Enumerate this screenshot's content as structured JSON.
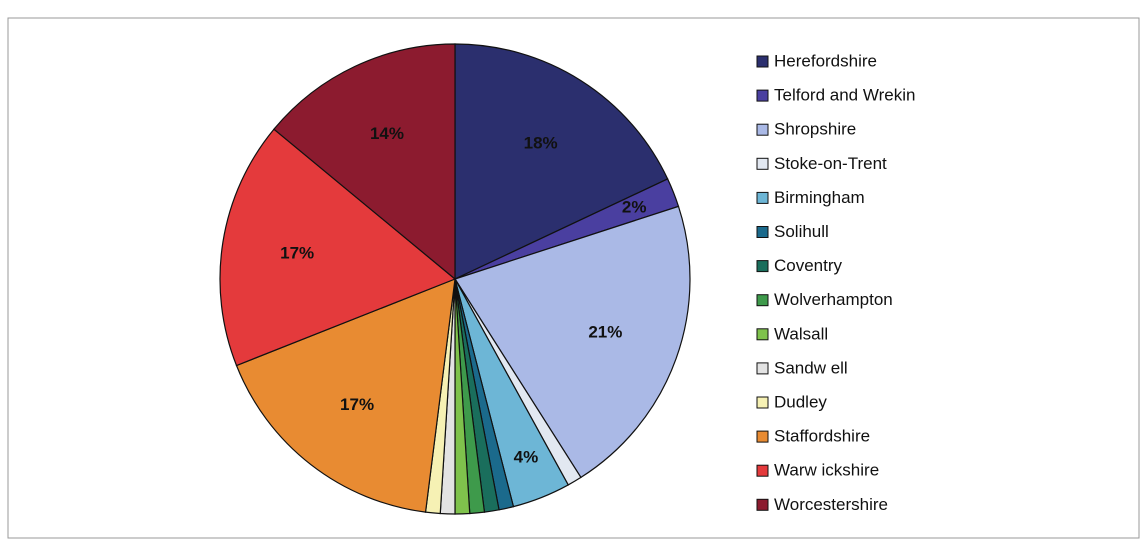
{
  "chart_data": {
    "type": "pie",
    "categories": [
      "Herefordshire",
      "Telford and Wrekin",
      "Shropshire",
      "Stoke-on-Trent",
      "Birmingham",
      "Solihull",
      "Coventry",
      "Wolverhampton",
      "Walsall",
      "Sandw ell",
      "Dudley",
      "Staffordshire",
      "Warw ickshire",
      "Worcestershire"
    ],
    "values": [
      18,
      2,
      21,
      1,
      4,
      1,
      1,
      1,
      1,
      1,
      1,
      17,
      17,
      14
    ],
    "value_labels": [
      "18%",
      "2%",
      "21%",
      null,
      "4%",
      null,
      null,
      null,
      null,
      null,
      null,
      "17%",
      "17%",
      "14%"
    ],
    "colors": [
      "#2b2f6e",
      "#4a3fa0",
      "#aab9e6",
      "#e2e8f1",
      "#6db6d6",
      "#1b6a8c",
      "#1a6e5c",
      "#3e9a4b",
      "#7fc24c",
      "#e3e3e3",
      "#f6f1b4",
      "#e88b32",
      "#e43a3c",
      "#8c1b2f"
    ],
    "legend": "right"
  }
}
